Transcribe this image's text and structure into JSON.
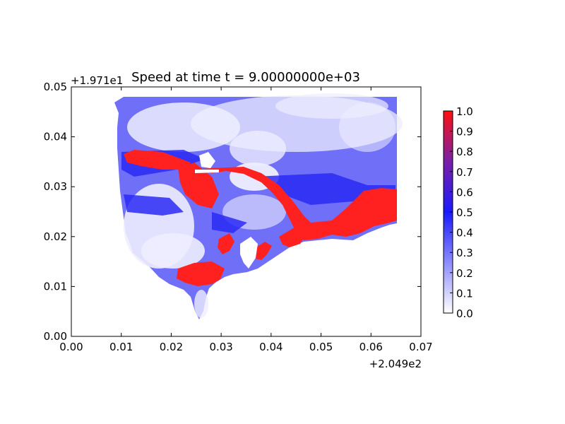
{
  "chart_data": {
    "type": "heatmap",
    "title": "Speed at time t = 9.00000000e+03",
    "x_offset_label": "+2.049e2",
    "y_offset_label": "+1.971e1",
    "xlim": [
      0.0,
      0.07
    ],
    "ylim": [
      0.0,
      0.05
    ],
    "x_ticks": [
      "0.00",
      "0.01",
      "0.02",
      "0.03",
      "0.04",
      "0.05",
      "0.06",
      "0.07"
    ],
    "y_ticks": [
      "0.00",
      "0.01",
      "0.02",
      "0.03",
      "0.04",
      "0.05"
    ],
    "colorbar": {
      "range": [
        0.0,
        1.0
      ],
      "ticks": [
        "0.0",
        "0.1",
        "0.2",
        "0.3",
        "0.4",
        "0.5",
        "0.6",
        "0.7",
        "0.8",
        "0.9",
        "1.0"
      ],
      "colors": [
        "#ffffff",
        "#0000ff",
        "#ff0000"
      ]
    },
    "field_domain": {
      "x": [
        0.009,
        0.065
      ],
      "y": [
        0.003,
        0.048
      ]
    },
    "grid": false
  }
}
